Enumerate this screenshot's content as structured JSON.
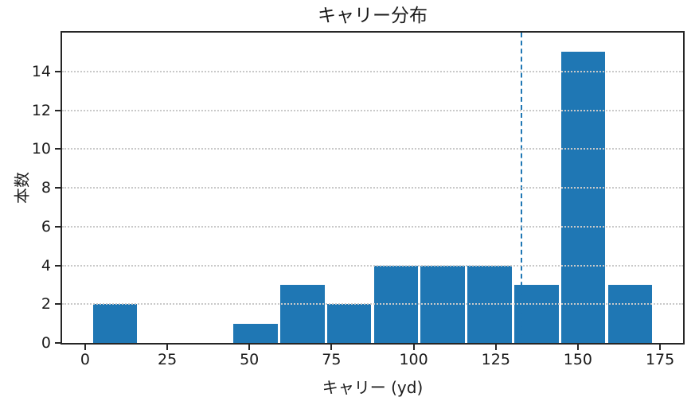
{
  "figure": {
    "background": "#ffffff"
  },
  "chart_data": {
    "type": "bar",
    "subtype": "histogram",
    "title": "キャリー分布",
    "xlabel": "キャリー (yd)",
    "ylabel": "本数",
    "bar_color": "#1f77b4",
    "bin_edges": [
      2.0,
      16.25,
      30.5,
      44.75,
      59.0,
      73.25,
      87.5,
      101.75,
      116.0,
      130.25,
      144.5,
      158.75,
      173.0
    ],
    "counts": [
      2,
      0,
      0,
      1,
      3,
      2,
      4,
      4,
      4,
      3,
      15,
      3
    ],
    "total_count": 41,
    "xticks": [
      0,
      25,
      50,
      75,
      100,
      125,
      150,
      175
    ],
    "yticks": [
      0,
      2,
      4,
      6,
      8,
      10,
      12,
      14
    ],
    "xlim": [
      -7,
      182
    ],
    "ylim": [
      0,
      16
    ],
    "grid": {
      "axis": "y",
      "style": "dotted",
      "color": "#c9c9c9",
      "above_bars": true
    },
    "vline": {
      "x": 132.8,
      "style": "dashed",
      "color": "#1f77b4"
    },
    "spine_color": "#262626",
    "text_color": "#1a1a1a",
    "legend": null
  }
}
